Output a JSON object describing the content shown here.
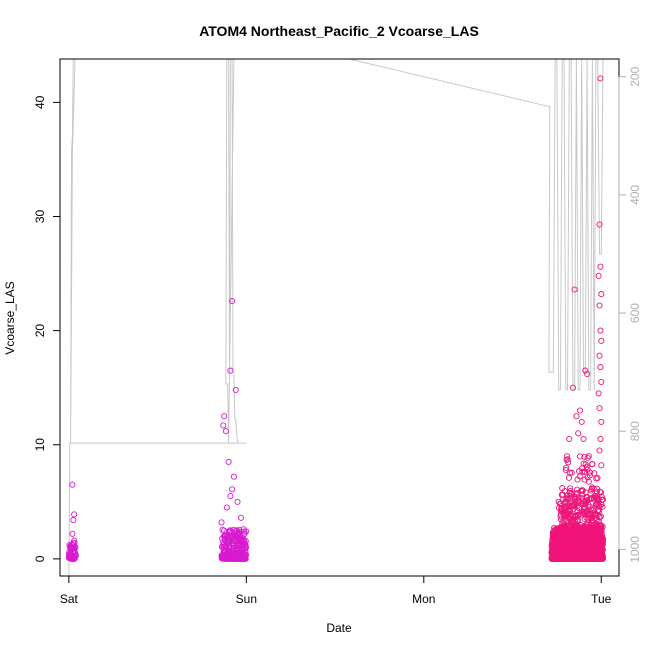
{
  "chart_data": {
    "type": "scatter",
    "title": "ATOM4 Northeast_Pacific_2 Vcoarse_LAS",
    "xlabel": "Date",
    "ylabel": "Vcoarse_LAS",
    "x_ticks": [
      "Sat",
      "Sun",
      "Mon",
      "Tue"
    ],
    "x_range_days": [
      -0.05,
      3.1
    ],
    "y_ticks": [
      0,
      10,
      20,
      30,
      40
    ],
    "ylim": [
      -1.5,
      43.8
    ],
    "y2_ticks": [
      200,
      400,
      600,
      800,
      1000
    ],
    "y2lim": [
      1045,
      170
    ],
    "y2_reversed": true,
    "grid": false,
    "colors": {
      "points": "#f0147a",
      "points_alt": "#d81ad0",
      "pressure_line": "#c8c8c8"
    },
    "points": [
      {
        "day": 0.02,
        "v": 6.5
      },
      {
        "day": 0.03,
        "v": 3.9
      },
      {
        "day": 0.025,
        "v": 3.4
      },
      {
        "day": 0.02,
        "v": 2.2
      },
      {
        "day": 0.03,
        "v": 1.6
      },
      {
        "day": 0.01,
        "v": 1.1
      },
      {
        "day": 0.03,
        "v": 0.7
      },
      {
        "day": 0.015,
        "v": 0.4
      },
      {
        "day": 0.92,
        "v": 22.6
      },
      {
        "day": 0.91,
        "v": 16.5
      },
      {
        "day": 0.875,
        "v": 12.5
      },
      {
        "day": 0.885,
        "v": 11.2
      },
      {
        "day": 0.87,
        "v": 11.7
      },
      {
        "day": 0.94,
        "v": 14.8
      },
      {
        "day": 0.9,
        "v": 8.5
      },
      {
        "day": 0.93,
        "v": 7.2
      },
      {
        "day": 0.92,
        "v": 6.1
      },
      {
        "day": 0.91,
        "v": 5.5
      },
      {
        "day": 0.95,
        "v": 5.0
      },
      {
        "day": 0.89,
        "v": 4.5
      },
      {
        "day": 0.86,
        "v": 3.2
      },
      {
        "day": 0.97,
        "v": 3.6
      },
      {
        "day": 2.85,
        "v": 23.6
      },
      {
        "day": 2.92,
        "v": 16.2
      },
      {
        "day": 2.91,
        "v": 16.5
      },
      {
        "day": 2.84,
        "v": 15.0
      },
      {
        "day": 2.86,
        "v": 12.5
      },
      {
        "day": 2.88,
        "v": 13.0
      },
      {
        "day": 2.89,
        "v": 12.0
      },
      {
        "day": 2.87,
        "v": 11.0
      },
      {
        "day": 2.9,
        "v": 10.5
      },
      {
        "day": 2.82,
        "v": 10.5
      },
      {
        "day": 2.8,
        "v": 7.8
      },
      {
        "day": 2.78,
        "v": 6.2
      },
      {
        "day": 2.76,
        "v": 5.0
      },
      {
        "day": 2.93,
        "v": 9.0
      },
      {
        "day": 2.95,
        "v": 8.3
      },
      {
        "day": 2.96,
        "v": 7.5
      },
      {
        "day": 2.995,
        "v": 42.1
      },
      {
        "day": 2.99,
        "v": 29.3
      },
      {
        "day": 2.995,
        "v": 25.6
      },
      {
        "day": 2.985,
        "v": 24.8
      },
      {
        "day": 3.0,
        "v": 23.2
      },
      {
        "day": 2.99,
        "v": 22.2
      },
      {
        "day": 2.995,
        "v": 20.0
      },
      {
        "day": 3.0,
        "v": 19.1
      },
      {
        "day": 2.99,
        "v": 17.8
      },
      {
        "day": 2.995,
        "v": 16.8
      },
      {
        "day": 3.0,
        "v": 15.5
      },
      {
        "day": 2.985,
        "v": 14.5
      },
      {
        "day": 2.99,
        "v": 13.2
      },
      {
        "day": 3.0,
        "v": 12.0
      },
      {
        "day": 2.995,
        "v": 10.5
      },
      {
        "day": 2.99,
        "v": 9.5
      },
      {
        "day": 3.0,
        "v": 8.2
      }
    ],
    "clusters": [
      {
        "start": 0.0,
        "end": 0.04,
        "n": 60,
        "max": 1.4,
        "color": "points_alt"
      },
      {
        "start": 0.86,
        "end": 1.0,
        "n": 260,
        "max": 2.6,
        "color": "points_alt"
      },
      {
        "start": 2.72,
        "end": 3.01,
        "n": 1500,
        "max": 2.8,
        "color": "points"
      },
      {
        "start": 2.76,
        "end": 3.01,
        "n": 600,
        "max": 6.0,
        "color": "points"
      },
      {
        "start": 2.8,
        "end": 3.0,
        "n": 200,
        "max": 9.0,
        "color": "points"
      }
    ],
    "pressure_path": [
      [
        0.0,
        1050
      ],
      [
        0.005,
        820
      ],
      [
        0.01,
        820
      ],
      [
        0.015,
        330
      ],
      [
        0.02,
        300
      ],
      [
        0.025,
        170
      ],
      [
        0.03,
        170
      ],
      [
        0.035,
        170
      ],
      [
        0.02,
        330
      ],
      [
        0.01,
        820
      ],
      [
        0.02,
        820
      ],
      [
        0.05,
        820
      ],
      [
        0.88,
        820
      ],
      [
        0.9,
        820
      ],
      [
        0.895,
        720
      ],
      [
        0.885,
        720
      ],
      [
        0.89,
        170
      ],
      [
        0.9,
        170
      ],
      [
        0.905,
        700
      ],
      [
        0.91,
        170
      ],
      [
        0.92,
        170
      ],
      [
        0.925,
        700
      ],
      [
        0.93,
        700
      ],
      [
        0.935,
        780
      ],
      [
        0.94,
        780
      ],
      [
        0.95,
        820
      ],
      [
        0.98,
        820
      ],
      [
        1.0,
        820
      ],
      [
        0.9,
        820
      ],
      [
        0.93,
        170
      ],
      [
        1.58,
        170
      ],
      [
        2.7,
        250
      ],
      [
        2.71,
        250
      ],
      [
        2.705,
        700
      ],
      [
        2.72,
        700
      ],
      [
        2.73,
        700
      ],
      [
        2.74,
        170
      ],
      [
        2.75,
        170
      ],
      [
        2.76,
        730
      ],
      [
        2.77,
        730
      ],
      [
        2.78,
        170
      ],
      [
        2.79,
        170
      ],
      [
        2.8,
        730
      ],
      [
        2.81,
        730
      ],
      [
        2.82,
        170
      ],
      [
        2.83,
        170
      ],
      [
        2.84,
        730
      ],
      [
        2.85,
        730
      ],
      [
        2.86,
        170
      ],
      [
        2.87,
        730
      ],
      [
        2.88,
        730
      ],
      [
        2.89,
        170
      ],
      [
        2.9,
        700
      ],
      [
        2.91,
        700
      ],
      [
        2.92,
        170
      ],
      [
        2.93,
        730
      ],
      [
        2.94,
        730
      ],
      [
        2.95,
        170
      ],
      [
        2.96,
        730
      ],
      [
        2.97,
        170
      ],
      [
        2.98,
        170
      ],
      [
        2.99,
        500
      ],
      [
        3.0,
        500
      ],
      [
        3.01,
        170
      ]
    ]
  }
}
